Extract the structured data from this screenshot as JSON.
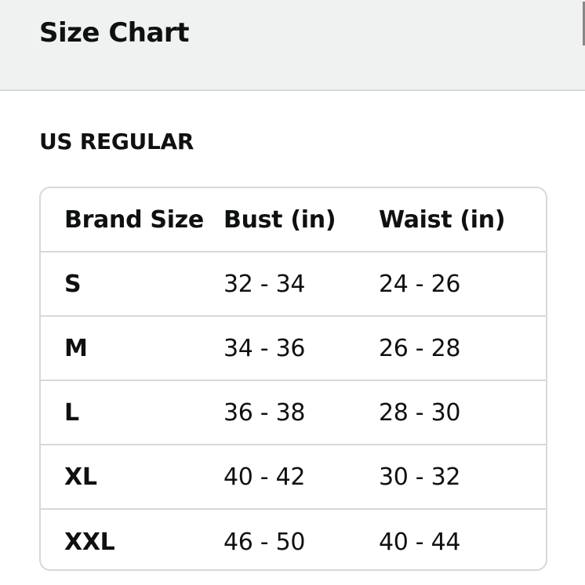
{
  "header": {
    "title": "Size Chart"
  },
  "section": {
    "title": "US REGULAR"
  },
  "table": {
    "columns": [
      "Brand Size",
      "Bust (in)",
      "Waist (in)"
    ],
    "rows": [
      [
        "S",
        "32 - 34",
        "24 - 26"
      ],
      [
        "M",
        "34 - 36",
        "26 - 28"
      ],
      [
        "L",
        "36 - 38",
        "28 - 30"
      ],
      [
        "XL",
        "40 - 42",
        "30 - 32"
      ],
      [
        "XXL",
        "46 - 50",
        "40 - 44"
      ]
    ]
  }
}
